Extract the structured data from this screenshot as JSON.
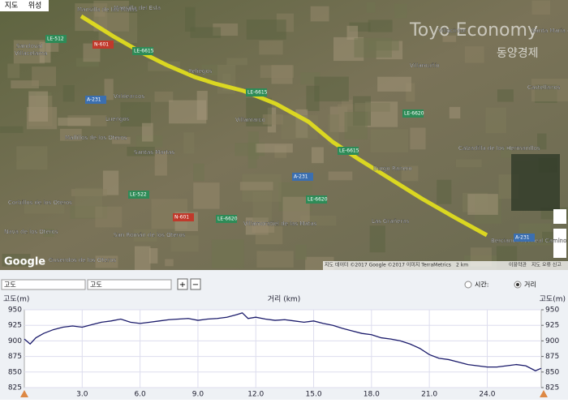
{
  "map": {
    "map_type_buttons": [
      "지도",
      "위성"
    ],
    "places": [
      "Mansilla de las Mulas",
      "Villacelama",
      "Reliegos",
      "Valdearcos",
      "Luengos",
      "Mallillos de los Oteros",
      "Santas Martas",
      "Villamarco",
      "Burgo Ranero",
      "Villamuñío",
      "Villacintor",
      "Calzadilla de los Hermanillos",
      "Castellanos",
      "Las Grañeras",
      "Bercianos del Real Camino",
      "Corbillos de los Oteros",
      "Nava de los Oteros",
      "Villamoratiel de las Matas",
      "Santa María del Monte de Cea",
      "San Román de los Oteros",
      "Gusendos de los Oteros",
      "Sandoval",
      "Mansilla del Esla"
    ],
    "roads": [
      "LE-512",
      "N-601",
      "LE-6615",
      "A-231",
      "LE-6615",
      "LE-6620",
      "LE-6615",
      "A-231",
      "LE-522",
      "LE-6620",
      "N-601",
      "LE-6620",
      "A-231"
    ],
    "watermark": {
      "name": "Toyo Economy",
      "korean": "동양경제"
    },
    "logo": "Google",
    "attribution": "지도 데이터 ©2017 Google ©2017 이미지 TerraMetrics",
    "scale": "2 km",
    "terms": "이용약관",
    "report": "지도 오류 신고"
  },
  "toolbar": {
    "select_left": "고도",
    "select_right": "고도",
    "zoom_in": "+",
    "zoom_out": "−",
    "radio_time": "시간:",
    "radio_distance": "거리"
  },
  "chart_data": {
    "type": "line",
    "x_label": "거리 (km)",
    "y_label": "고도(m)",
    "y2_label": "고도(m)",
    "x": [
      0,
      0.3,
      0.6,
      1,
      1.5,
      2,
      2.5,
      3,
      3.5,
      4,
      4.5,
      5,
      5.5,
      6,
      6.5,
      7,
      7.5,
      8,
      8.5,
      9,
      9.5,
      10,
      10.5,
      11,
      11.3,
      11.6,
      12,
      12.5,
      13,
      13.5,
      14,
      14.5,
      15,
      15.5,
      16,
      16.5,
      17,
      17.5,
      18,
      18.5,
      19,
      19.5,
      20,
      20.5,
      21,
      21.5,
      22,
      22.5,
      23,
      23.5,
      24,
      24.5,
      25,
      25.5,
      26,
      26.5,
      26.8
    ],
    "series": [
      {
        "color": "#1b1b6b",
        "values": [
          903,
          895,
          905,
          912,
          918,
          922,
          924,
          922,
          926,
          930,
          932,
          935,
          930,
          928,
          930,
          932,
          934,
          935,
          936,
          933,
          935,
          936,
          938,
          942,
          945,
          936,
          938,
          935,
          933,
          934,
          932,
          930,
          932,
          928,
          925,
          920,
          916,
          912,
          910,
          905,
          903,
          900,
          895,
          888,
          878,
          872,
          870,
          866,
          862,
          860,
          858,
          858,
          860,
          862,
          860,
          852,
          856
        ]
      }
    ],
    "xlim": [
      0,
      26.8
    ],
    "ylim": [
      825,
      950
    ],
    "y2lim": [
      825,
      950
    ],
    "xticks": [
      {
        "value": 3,
        "label": "3.0"
      },
      {
        "value": 6,
        "label": "6.0"
      },
      {
        "value": 9,
        "label": "9.0"
      },
      {
        "value": 12,
        "label": "12.0"
      },
      {
        "value": 15,
        "label": "15.0"
      },
      {
        "value": 18,
        "label": "18.0"
      },
      {
        "value": 21,
        "label": "21.0"
      },
      {
        "value": 24,
        "label": "24.0"
      }
    ],
    "yticks": [
      825,
      850,
      875,
      900,
      925,
      950
    ],
    "y2ticks": [
      825,
      850,
      875,
      900,
      925,
      950
    ],
    "grid": true
  }
}
